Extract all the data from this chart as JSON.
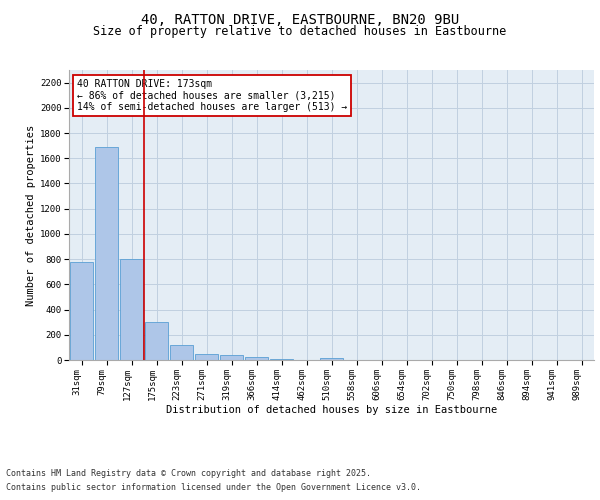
{
  "title_line1": "40, RATTON DRIVE, EASTBOURNE, BN20 9BU",
  "title_line2": "Size of property relative to detached houses in Eastbourne",
  "xlabel": "Distribution of detached houses by size in Eastbourne",
  "ylabel": "Number of detached properties",
  "categories": [
    "31sqm",
    "79sqm",
    "127sqm",
    "175sqm",
    "223sqm",
    "271sqm",
    "319sqm",
    "366sqm",
    "414sqm",
    "462sqm",
    "510sqm",
    "558sqm",
    "606sqm",
    "654sqm",
    "702sqm",
    "750sqm",
    "798sqm",
    "846sqm",
    "894sqm",
    "941sqm",
    "989sqm"
  ],
  "values": [
    775,
    1690,
    800,
    300,
    120,
    50,
    40,
    25,
    10,
    0,
    15,
    0,
    0,
    0,
    0,
    0,
    0,
    0,
    0,
    0,
    0
  ],
  "bar_color": "#aec6e8",
  "bar_edge_color": "#5a9fd4",
  "grid_color": "#c0d0e0",
  "background_color": "#e4edf5",
  "vline_color": "#cc0000",
  "annotation_text": "40 RATTON DRIVE: 173sqm\n← 86% of detached houses are smaller (3,215)\n14% of semi-detached houses are larger (513) →",
  "annotation_box_color": "#cc0000",
  "ylim": [
    0,
    2300
  ],
  "yticks": [
    0,
    200,
    400,
    600,
    800,
    1000,
    1200,
    1400,
    1600,
    1800,
    2000,
    2200
  ],
  "footer_line1": "Contains HM Land Registry data © Crown copyright and database right 2025.",
  "footer_line2": "Contains public sector information licensed under the Open Government Licence v3.0.",
  "title_fontsize": 10,
  "subtitle_fontsize": 8.5,
  "axis_label_fontsize": 7.5,
  "tick_fontsize": 6.5,
  "annotation_fontsize": 7,
  "footer_fontsize": 6
}
